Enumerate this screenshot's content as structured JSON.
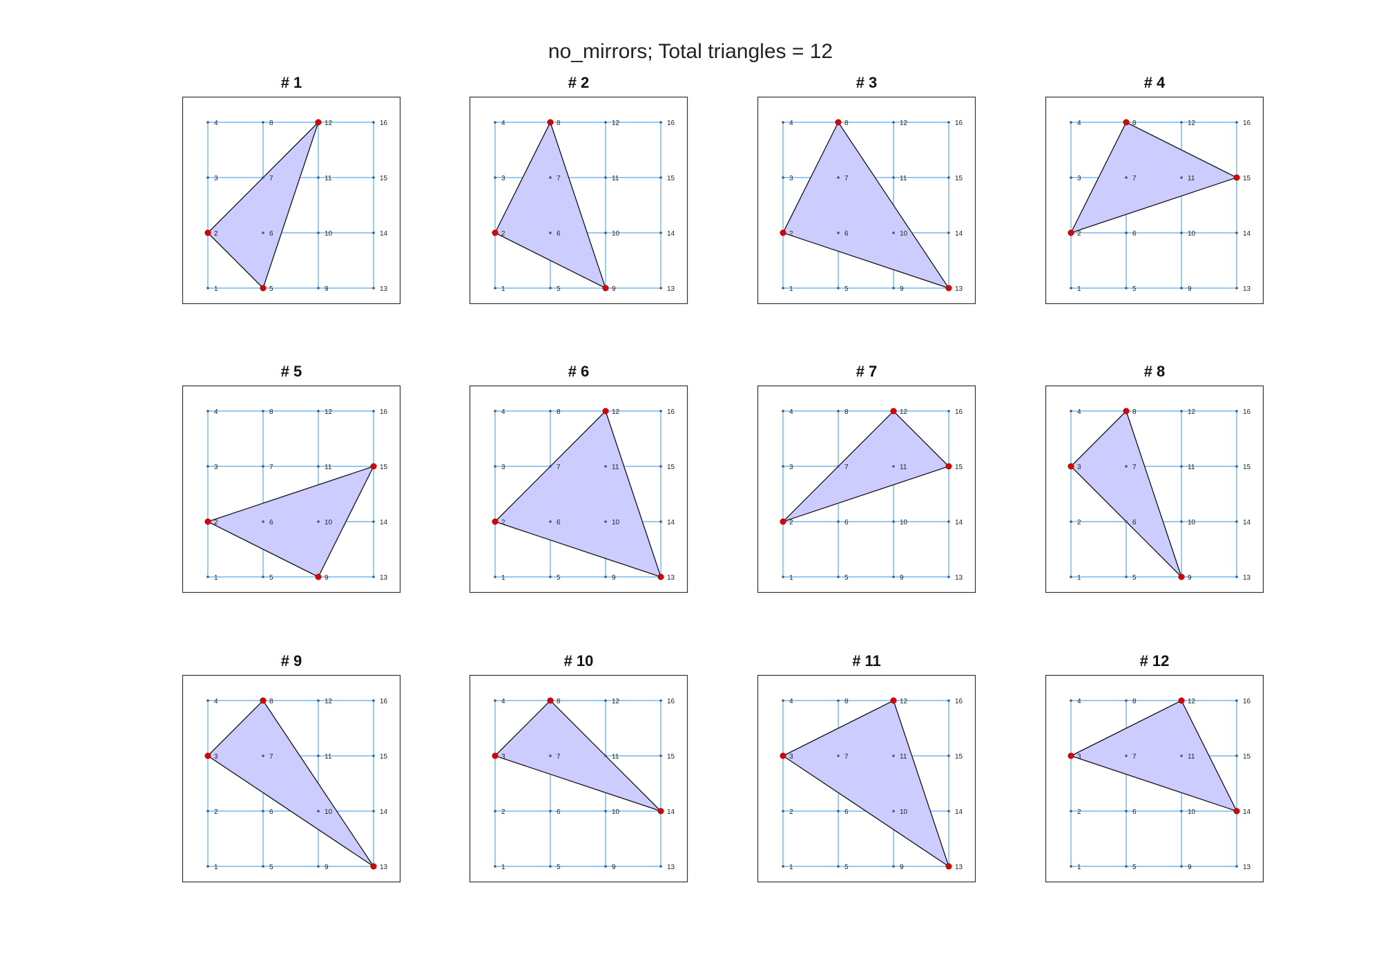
{
  "title": "no_mirrors; Total triangles = 12",
  "colors": {
    "grid": "#5aa9e6",
    "point": "#2b5c9e",
    "vertex": "#e00000",
    "fill": "#ccccff",
    "edge": "#111111"
  },
  "points": [
    {
      "id": 1,
      "label": "1",
      "col": 0,
      "row": 0
    },
    {
      "id": 2,
      "label": "2",
      "col": 0,
      "row": 1
    },
    {
      "id": 3,
      "label": "3",
      "col": 0,
      "row": 2
    },
    {
      "id": 4,
      "label": "4",
      "col": 0,
      "row": 3
    },
    {
      "id": 5,
      "label": "5",
      "col": 1,
      "row": 0
    },
    {
      "id": 6,
      "label": "6",
      "col": 1,
      "row": 1
    },
    {
      "id": 7,
      "label": "7",
      "col": 1,
      "row": 2
    },
    {
      "id": 8,
      "label": "8",
      "col": 1,
      "row": 3
    },
    {
      "id": 9,
      "label": "9",
      "col": 2,
      "row": 0
    },
    {
      "id": 10,
      "label": "10",
      "col": 2,
      "row": 1
    },
    {
      "id": 11,
      "label": "11",
      "col": 2,
      "row": 2
    },
    {
      "id": 12,
      "label": "12",
      "col": 2,
      "row": 3
    },
    {
      "id": 13,
      "label": "13",
      "col": 3,
      "row": 0
    },
    {
      "id": 14,
      "label": "14",
      "col": 3,
      "row": 1
    },
    {
      "id": 15,
      "label": "15",
      "col": 3,
      "row": 2
    },
    {
      "id": 16,
      "label": "16",
      "col": 3,
      "row": 3
    }
  ],
  "panels": [
    {
      "title": "# 1",
      "triangle": [
        2,
        5,
        12
      ]
    },
    {
      "title": "# 2",
      "triangle": [
        2,
        8,
        9
      ]
    },
    {
      "title": "# 3",
      "triangle": [
        2,
        8,
        13
      ]
    },
    {
      "title": "# 4",
      "triangle": [
        2,
        8,
        15
      ]
    },
    {
      "title": "# 5",
      "triangle": [
        2,
        9,
        15
      ]
    },
    {
      "title": "# 6",
      "triangle": [
        2,
        12,
        13
      ]
    },
    {
      "title": "# 7",
      "triangle": [
        2,
        12,
        15
      ]
    },
    {
      "title": "# 8",
      "triangle": [
        3,
        8,
        9
      ]
    },
    {
      "title": "# 9",
      "triangle": [
        3,
        8,
        13
      ]
    },
    {
      "title": "# 10",
      "triangle": [
        3,
        8,
        14
      ]
    },
    {
      "title": "# 11",
      "triangle": [
        3,
        12,
        13
      ]
    },
    {
      "title": "# 12",
      "triangle": [
        3,
        12,
        14
      ]
    }
  ]
}
